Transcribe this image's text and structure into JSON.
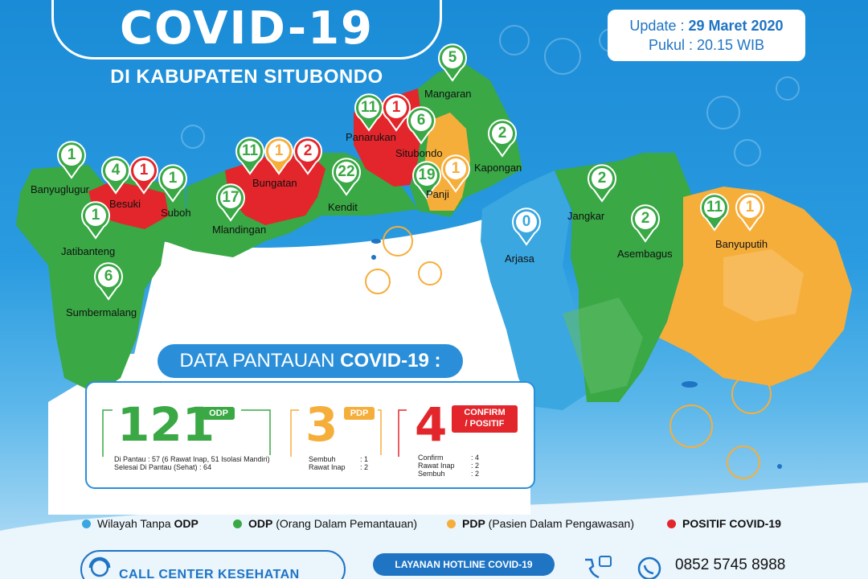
{
  "header": {
    "title": "COVID-19",
    "subtitle": "DI KABUPATEN SITUBONDO",
    "update_label": "Update :",
    "update_date": "29 Maret 2020",
    "time_label": "Pukul :",
    "time_value": "20.15 WIB"
  },
  "colors": {
    "red": "#e3262b",
    "green": "#39a845",
    "orange": "#f6ae3b",
    "blue": "#3aa7e0"
  },
  "districts": [
    {
      "name": "Banyuglugur",
      "counts": [
        {
          "v": "1",
          "c": "green"
        }
      ]
    },
    {
      "name": "Besuki",
      "counts": [
        {
          "v": "4",
          "c": "green"
        },
        {
          "v": "1",
          "c": "red"
        }
      ]
    },
    {
      "name": "Suboh",
      "counts": [
        {
          "v": "1",
          "c": "green"
        }
      ]
    },
    {
      "name": "Jatibanteng",
      "counts": [
        {
          "v": "1",
          "c": "green"
        }
      ]
    },
    {
      "name": "Sumbermalang",
      "counts": [
        {
          "v": "6",
          "c": "green"
        }
      ]
    },
    {
      "name": "Mlandingan",
      "counts": [
        {
          "v": "17",
          "c": "green"
        }
      ]
    },
    {
      "name": "Bungatan",
      "counts": [
        {
          "v": "11",
          "c": "green"
        },
        {
          "v": "1",
          "c": "orange"
        },
        {
          "v": "2",
          "c": "red"
        }
      ]
    },
    {
      "name": "Kendit",
      "counts": [
        {
          "v": "22",
          "c": "green"
        }
      ]
    },
    {
      "name": "Panarukan",
      "counts": [
        {
          "v": "11",
          "c": "green"
        },
        {
          "v": "1",
          "c": "red"
        }
      ]
    },
    {
      "name": "Mangaran",
      "counts": [
        {
          "v": "5",
          "c": "green"
        }
      ]
    },
    {
      "name": "Situbondo",
      "counts": [
        {
          "v": "6",
          "c": "green"
        }
      ]
    },
    {
      "name": "Panji",
      "counts": [
        {
          "v": "19",
          "c": "green"
        },
        {
          "v": "1",
          "c": "orange"
        }
      ]
    },
    {
      "name": "Kapongan",
      "counts": [
        {
          "v": "2",
          "c": "green"
        }
      ]
    },
    {
      "name": "Arjasa",
      "counts": [
        {
          "v": "0",
          "c": "blue"
        }
      ]
    },
    {
      "name": "Jangkar",
      "counts": [
        {
          "v": "2",
          "c": "green"
        }
      ]
    },
    {
      "name": "Asembagus",
      "counts": [
        {
          "v": "2",
          "c": "green"
        }
      ]
    },
    {
      "name": "Banyuputih",
      "counts": [
        {
          "v": "11",
          "c": "green"
        },
        {
          "v": "1",
          "c": "orange"
        }
      ]
    }
  ],
  "data_panel": {
    "heading_normal": "DATA PANTAUAN",
    "heading_bold": "COVID-19 :",
    "odp": {
      "value": "121",
      "tag": "ODP",
      "line1": "Di Pantau : 57 (6 Rawat Inap, 51 Isolasi Mandiri)",
      "line2": "Selesai Di Pantau (Sehat) : 64"
    },
    "pdp": {
      "value": "3",
      "tag": "PDP",
      "rows": [
        {
          "k": "Sembuh",
          "v": ": 1"
        },
        {
          "k": "Rawat Inap",
          "v": ": 2"
        }
      ]
    },
    "positif": {
      "value": "4",
      "tag_line1": "CONFIRM",
      "tag_line2": "/ POSITIF",
      "rows": [
        {
          "k": "Confirm",
          "v": ": 4"
        },
        {
          "k": "Rawat Inap",
          "v": ": 2"
        },
        {
          "k": "Sembuh",
          "v": ": 2"
        }
      ]
    }
  },
  "legend": [
    {
      "pre": "Wilayah Tanpa ",
      "bold": "ODP",
      "post": "",
      "color": "#3aa7e0"
    },
    {
      "pre": "",
      "bold": "ODP",
      "post": " (Orang Dalam Pemantauan)",
      "color": "#39a845"
    },
    {
      "pre": "",
      "bold": "PDP",
      "post": " (Pasien Dalam Pengawasan)",
      "color": "#f6ae3b"
    },
    {
      "pre": "",
      "bold": "POSITIF COVID-19",
      "post": "",
      "color": "#e3262b"
    }
  ],
  "footer": {
    "call_center": "CALL CENTER KESEHATAN",
    "hotline_label": "LAYANAN HOTLINE COVID-19",
    "phone": "0852 5745 8988"
  }
}
